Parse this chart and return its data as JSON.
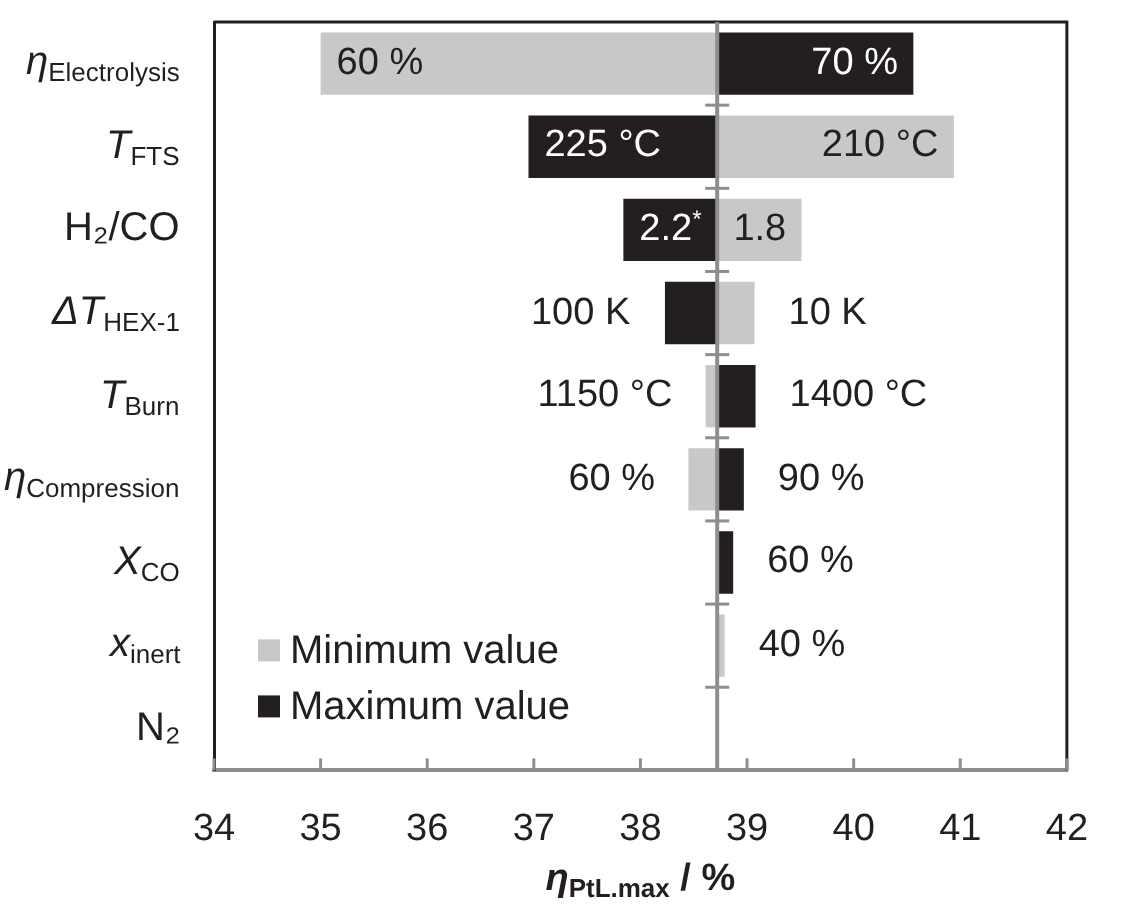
{
  "chart_data": {
    "type": "bar",
    "orientation": "horizontal",
    "categories": [
      "η$_{Electrolysis}$",
      "T$_{FTS}$",
      "H₂/CO",
      "ΔT$_{HEX-1}$",
      "T$_{Burn}$",
      "η$_{Compression}$",
      "X$_{CO}$",
      "x$_{inert}$",
      "N₂"
    ],
    "series": [
      {
        "name": "Minimum value",
        "color": "#c7c8ca",
        "values": [
          -3.72,
          2.22,
          0.79,
          0.35,
          -0.11,
          -0.27,
          null,
          0.07,
          null
        ],
        "base": [
          38.72,
          38.72,
          38.72,
          38.72,
          38.72,
          38.72,
          null,
          38.72,
          null
        ]
      },
      {
        "name": "Maximum value",
        "color": "#231f20",
        "values": [
          1.84,
          -1.77,
          -0.88,
          -0.49,
          0.36,
          0.25,
          0.15,
          null,
          null
        ],
        "base": [
          38.72,
          38.72,
          38.72,
          38.72,
          38.72,
          38.72,
          38.72,
          null,
          null
        ]
      }
    ],
    "annotations": [
      {
        "text": "60 %",
        "x": 35.0,
        "y": "η$_{Electrolysis}$"
      },
      {
        "text": "70 %",
        "x": 40.56,
        "y": "η$_{Electrolysis}$"
      },
      {
        "text": "225 °C",
        "x": 36.95,
        "y": "T$_{FTS}$"
      },
      {
        "text": "210 °C",
        "x": 40.94,
        "y": "T$_{FTS}$"
      },
      {
        "text": "2.2$^{*}$",
        "x": 37.84,
        "y": "H₂/CO"
      },
      {
        "text": "1.8",
        "x": 39.51,
        "y": "H₂/CO"
      },
      {
        "text": "100 K",
        "x": 38.23,
        "y": "ΔT$_{HEX-1}$"
      },
      {
        "text": "10 K",
        "x": 39.07,
        "y": "ΔT$_{HEX-1}$"
      },
      {
        "text": "1150 °C",
        "x": 38.61,
        "y": "T$_{Burn}$"
      },
      {
        "text": "1400 °C",
        "x": 39.08,
        "y": "T$_{Burn}$"
      },
      {
        "text": "60 %",
        "x": 38.45,
        "y": "η$_{Compression}$"
      },
      {
        "text": "90 %",
        "x": 38.97,
        "y": "η$_{Compression}$"
      },
      {
        "text": "60 %",
        "x": 38.87,
        "y": "X$_{CO}$"
      },
      {
        "text": "40 %",
        "x": 38.79,
        "y": "x$_{inert}$"
      }
    ],
    "xlabel": "η$_{PtL.max}$ / %",
    "xlim": [
      34,
      42
    ],
    "xticks": [
      34,
      35,
      36,
      37,
      38,
      39,
      40,
      41,
      42
    ],
    "ref_lines": [
      {
        "axis": "x",
        "value": 38.72,
        "color": "#8e8e8e"
      }
    ],
    "legend": "bottom left"
  }
}
